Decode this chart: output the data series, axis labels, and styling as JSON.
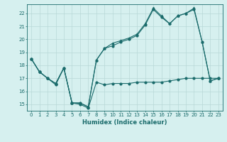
{
  "xlabel": "Humidex (Indice chaleur)",
  "bg_color": "#d6f0ef",
  "grid_color": "#b8d8d8",
  "line_color": "#1a6b6b",
  "xlim": [
    -0.5,
    23.5
  ],
  "ylim": [
    14.5,
    22.7
  ],
  "yticks": [
    15,
    16,
    17,
    18,
    19,
    20,
    21,
    22
  ],
  "xticks": [
    0,
    1,
    2,
    3,
    4,
    5,
    6,
    7,
    8,
    9,
    10,
    11,
    12,
    13,
    14,
    15,
    16,
    17,
    18,
    19,
    20,
    21,
    22,
    23
  ],
  "series1_x": [
    0,
    1,
    2,
    3,
    4,
    5,
    6,
    7,
    8,
    9,
    10,
    11,
    12,
    13,
    14,
    15,
    16,
    17,
    18,
    19,
    20,
    21,
    22,
    23
  ],
  "series1_y": [
    18.5,
    17.5,
    17.0,
    16.5,
    17.8,
    15.1,
    15.0,
    14.7,
    16.7,
    16.5,
    16.6,
    16.6,
    16.6,
    16.7,
    16.7,
    16.7,
    16.7,
    16.8,
    16.9,
    17.0,
    17.0,
    17.0,
    17.0,
    17.0
  ],
  "series2_x": [
    0,
    1,
    2,
    3,
    4,
    5,
    6,
    7,
    8,
    9,
    10,
    11,
    12,
    13,
    14,
    15,
    16,
    17,
    18,
    19,
    20,
    21,
    22,
    23
  ],
  "series2_y": [
    18.5,
    17.5,
    17.0,
    16.6,
    17.8,
    15.1,
    15.1,
    14.8,
    18.4,
    19.3,
    19.5,
    19.8,
    20.0,
    20.3,
    21.1,
    22.3,
    21.7,
    21.2,
    21.8,
    22.0,
    22.3,
    19.8,
    16.8,
    17.0
  ],
  "series3_x": [
    0,
    1,
    2,
    3,
    4,
    5,
    6,
    7,
    8,
    9,
    10,
    11,
    12,
    13,
    14,
    15,
    16,
    17,
    18,
    19,
    20,
    21,
    22,
    23
  ],
  "series3_y": [
    18.5,
    17.5,
    17.0,
    16.6,
    17.8,
    15.1,
    15.1,
    14.8,
    18.4,
    19.3,
    19.7,
    19.9,
    20.1,
    20.4,
    21.2,
    22.4,
    21.8,
    21.2,
    21.8,
    22.0,
    22.4,
    19.8,
    16.8,
    17.0
  ],
  "tick_fontsize": 5.0,
  "xlabel_fontsize": 6.0
}
